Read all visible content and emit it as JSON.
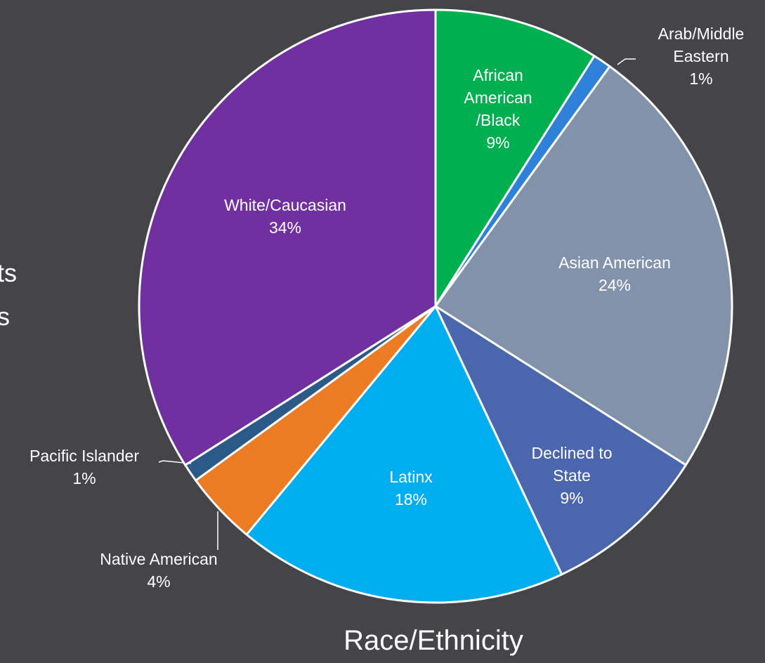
{
  "chart_data": {
    "type": "pie",
    "title": "Race/Ethnicity",
    "categories": [
      "African American /Black",
      "Arab/Middle Eastern",
      "Asian American",
      "Declined to State",
      "Latinx",
      "Native American",
      "Pacific Islander",
      "White/Caucasian"
    ],
    "values": [
      9,
      1,
      24,
      9,
      18,
      4,
      1,
      34
    ],
    "value_labels": [
      "9%",
      "1%",
      "24%",
      "9%",
      "18%",
      "4%",
      "1%",
      "34%"
    ],
    "colors": [
      "#00b050",
      "#2e80d9",
      "#8292ab",
      "#4a66ad",
      "#00aeef",
      "#ec7c24",
      "#2c5a88",
      "#7030a0"
    ]
  },
  "side_text": [
    "ts",
    "s"
  ]
}
